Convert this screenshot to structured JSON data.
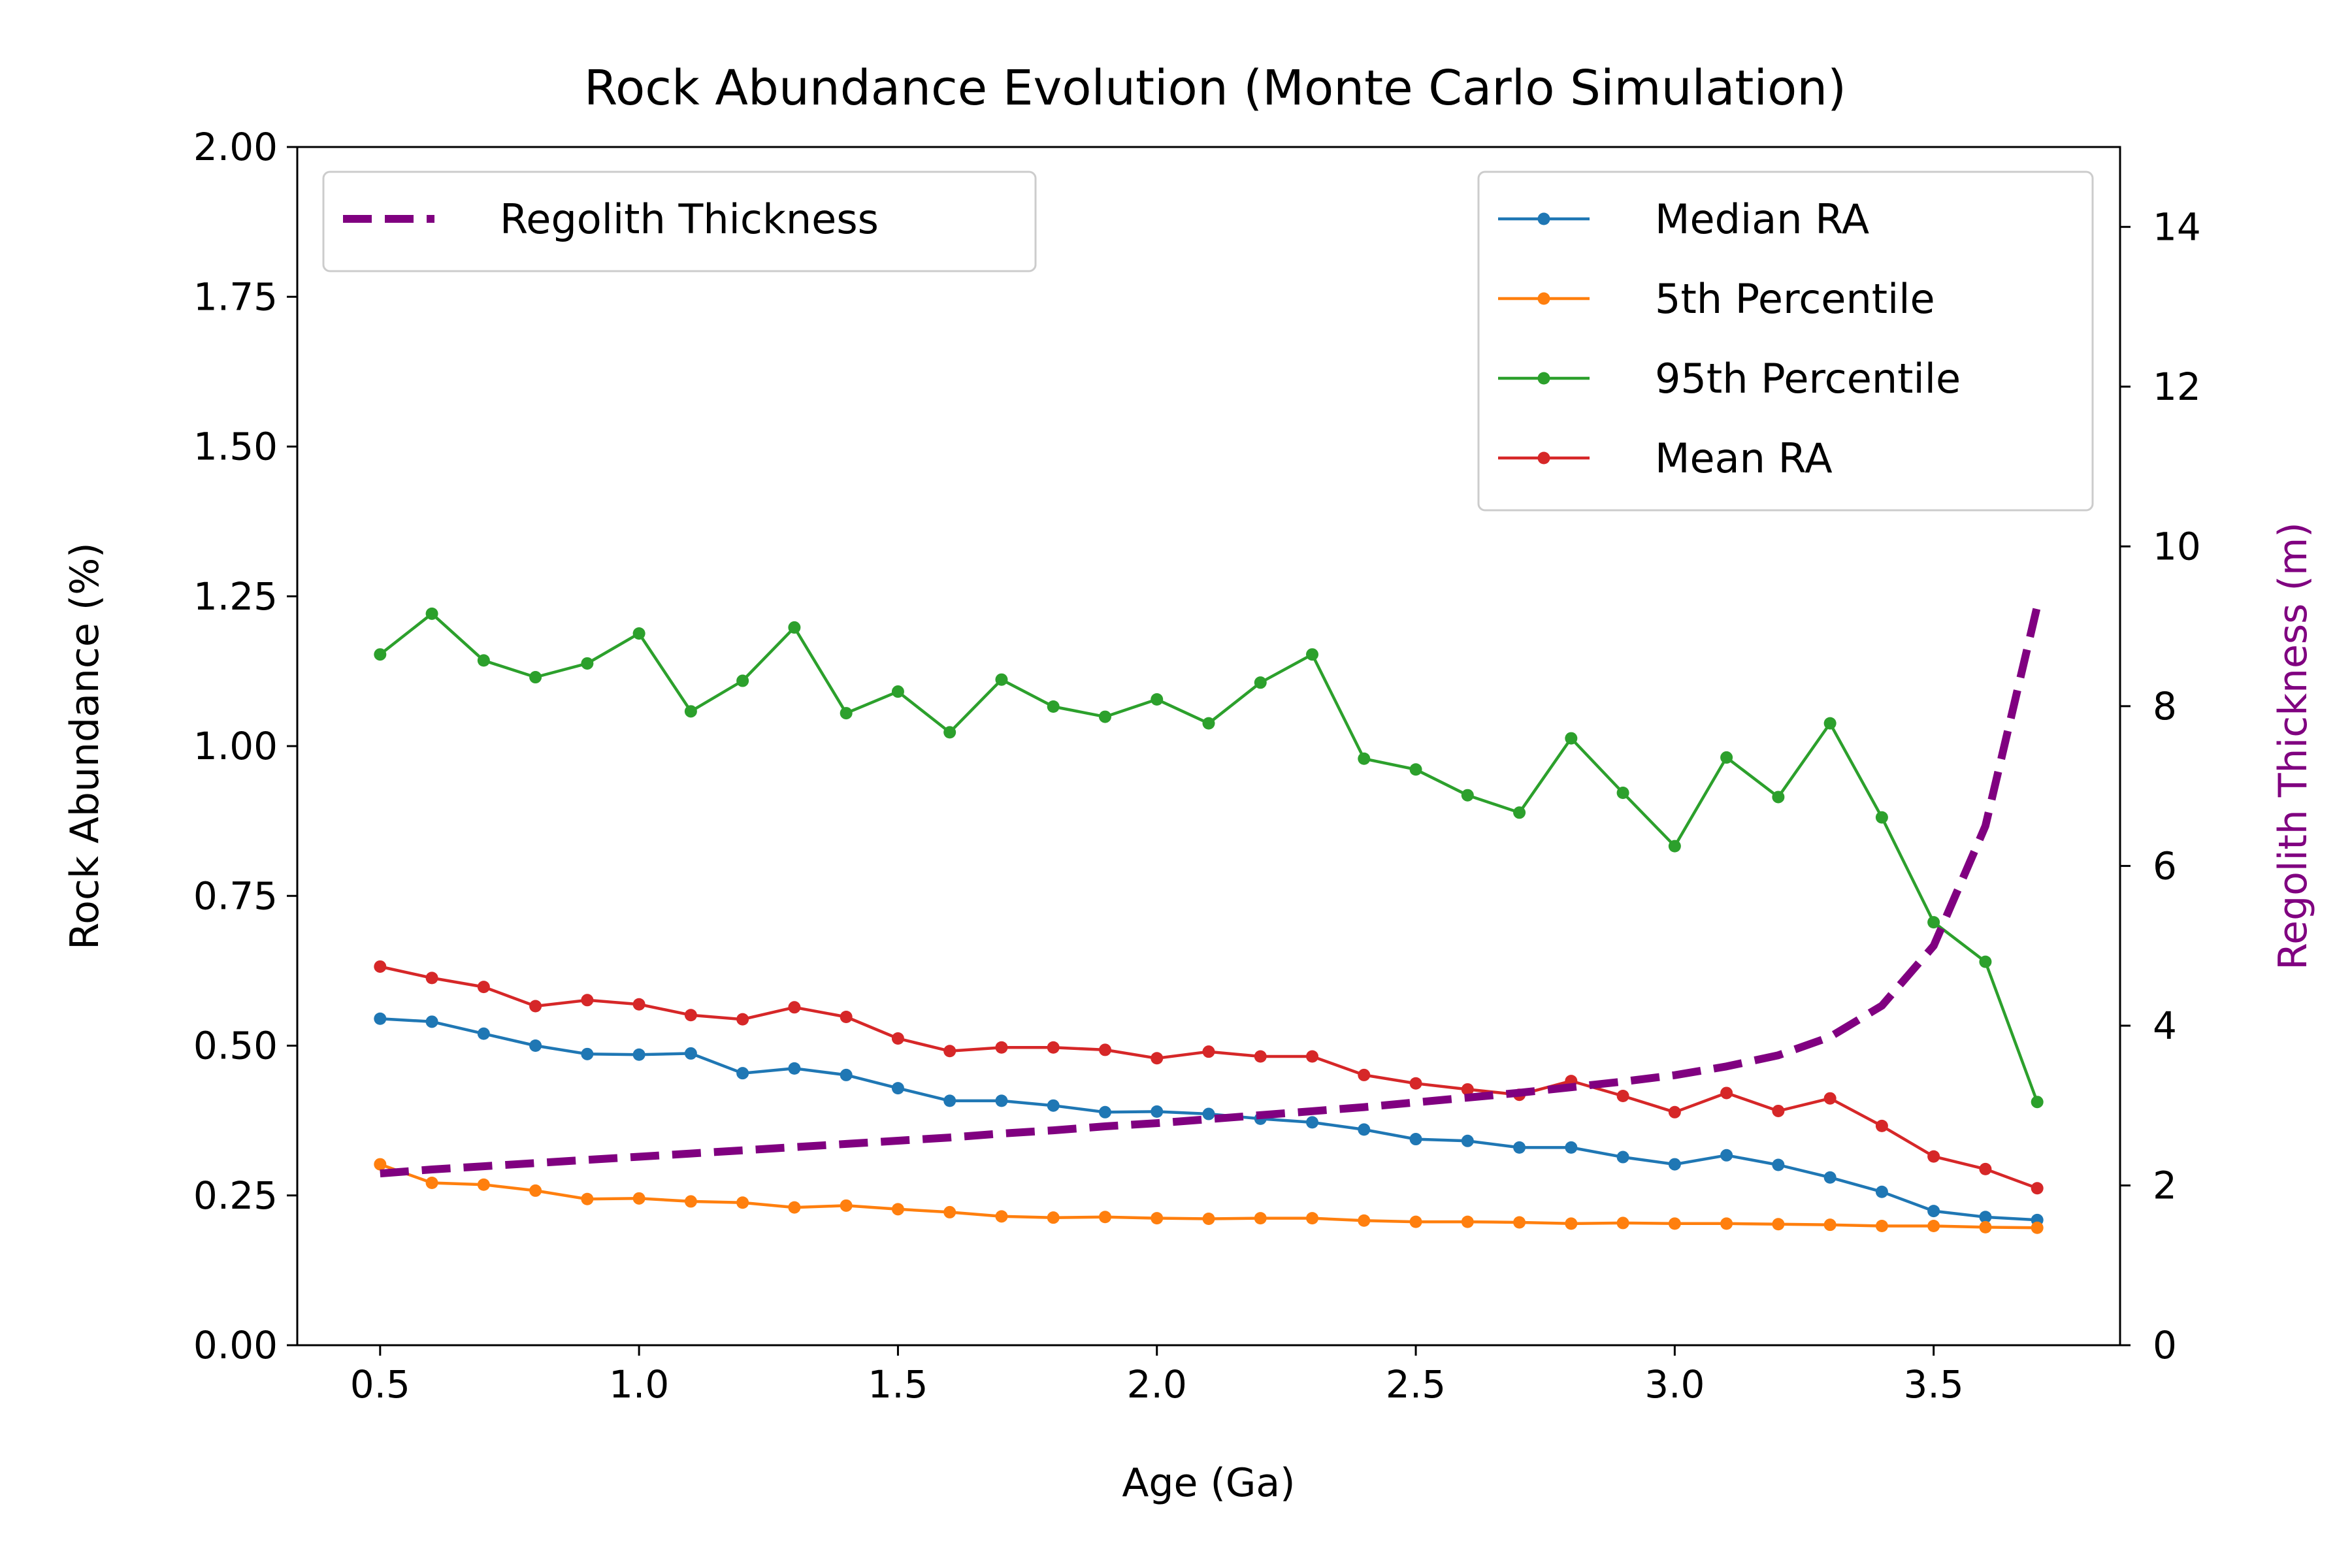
{
  "chart_data": {
    "type": "line",
    "title": "Rock Abundance Evolution (Monte Carlo Simulation)",
    "xlabel": "Age (Ga)",
    "ylabel": "Rock Abundance (%)",
    "y2label": "Regolith Thickness (m)",
    "xlim": [
      0.34,
      3.86
    ],
    "ylim": [
      0,
      2.0
    ],
    "y2lim": [
      0,
      15
    ],
    "xticks": [
      "0.5",
      "1.0",
      "1.5",
      "2.0",
      "2.5",
      "3.0",
      "3.5"
    ],
    "yticks": [
      "0.00",
      "0.25",
      "0.50",
      "0.75",
      "1.00",
      "1.25",
      "1.50",
      "1.75",
      "2.00"
    ],
    "y2ticks": [
      "0",
      "2",
      "4",
      "6",
      "8",
      "10",
      "12",
      "14"
    ],
    "grid": false,
    "legend_left_position": "upper left",
    "legend_right_position": "upper right",
    "y2label_color": "#800080",
    "x": [
      0.5,
      0.6,
      0.7,
      0.8,
      0.9,
      1.0,
      1.1,
      1.2,
      1.3,
      1.4,
      1.5,
      1.6,
      1.7,
      1.8,
      1.9,
      2.0,
      2.1,
      2.2,
      2.3,
      2.4,
      2.5,
      2.6,
      2.7,
      2.8,
      2.9,
      3.0,
      3.1,
      3.2,
      3.3,
      3.4,
      3.5,
      3.6,
      3.7
    ],
    "series": [
      {
        "name": "Median RA",
        "axis": "left",
        "color": "#1f77b4",
        "values": [
          0.545,
          0.54,
          0.52,
          0.5,
          0.486,
          0.485,
          0.487,
          0.454,
          0.462,
          0.451,
          0.429,
          0.408,
          0.408,
          0.4,
          0.389,
          0.39,
          0.386,
          0.378,
          0.372,
          0.36,
          0.344,
          0.341,
          0.33,
          0.33,
          0.314,
          0.302,
          0.317,
          0.301,
          0.28,
          0.256,
          0.224,
          0.214,
          0.209
        ]
      },
      {
        "name": "5th Percentile",
        "axis": "left",
        "color": "#ff7f0e",
        "values": [
          0.302,
          0.271,
          0.268,
          0.258,
          0.244,
          0.245,
          0.24,
          0.238,
          0.23,
          0.233,
          0.227,
          0.222,
          0.215,
          0.213,
          0.214,
          0.212,
          0.211,
          0.212,
          0.212,
          0.208,
          0.206,
          0.206,
          0.205,
          0.203,
          0.204,
          0.203,
          0.203,
          0.202,
          0.201,
          0.199,
          0.199,
          0.197,
          0.196
        ]
      },
      {
        "name": "95th Percentile",
        "axis": "left",
        "color": "#2ca02c",
        "values": [
          1.153,
          1.221,
          1.143,
          1.115,
          1.138,
          1.188,
          1.058,
          1.109,
          1.198,
          1.055,
          1.091,
          1.023,
          1.111,
          1.066,
          1.049,
          1.078,
          1.038,
          1.106,
          1.153,
          0.979,
          0.961,
          0.918,
          0.889,
          1.013,
          0.922,
          0.833,
          0.981,
          0.915,
          1.038,
          0.881,
          0.706,
          0.64,
          0.406
        ]
      },
      {
        "name": "Mean RA",
        "axis": "left",
        "color": "#d62728",
        "values": [
          0.632,
          0.613,
          0.598,
          0.566,
          0.576,
          0.569,
          0.551,
          0.544,
          0.564,
          0.548,
          0.512,
          0.491,
          0.497,
          0.497,
          0.493,
          0.479,
          0.49,
          0.482,
          0.482,
          0.451,
          0.437,
          0.427,
          0.418,
          0.441,
          0.416,
          0.389,
          0.421,
          0.391,
          0.412,
          0.366,
          0.315,
          0.294,
          0.262
        ]
      },
      {
        "name": "Regolith Thickness",
        "axis": "right",
        "color": "#800080",
        "dashed": true,
        "x": [
          0.5,
          0.6,
          0.7,
          0.8,
          0.9,
          1.0,
          1.1,
          1.2,
          1.3,
          1.4,
          1.5,
          1.6,
          1.7,
          1.8,
          1.9,
          2.0,
          2.1,
          2.2,
          2.3,
          2.4,
          2.5,
          2.6,
          2.7,
          2.8,
          2.9,
          3.0,
          3.1,
          3.2,
          3.3,
          3.4,
          3.5,
          3.6,
          3.7
        ],
        "values": [
          2.15,
          2.2,
          2.24,
          2.28,
          2.32,
          2.36,
          2.4,
          2.44,
          2.48,
          2.52,
          2.56,
          2.6,
          2.65,
          2.69,
          2.74,
          2.78,
          2.83,
          2.88,
          2.93,
          2.98,
          3.04,
          3.1,
          3.16,
          3.23,
          3.3,
          3.38,
          3.49,
          3.63,
          3.86,
          4.25,
          5.0,
          6.5,
          9.25
        ]
      }
    ]
  }
}
